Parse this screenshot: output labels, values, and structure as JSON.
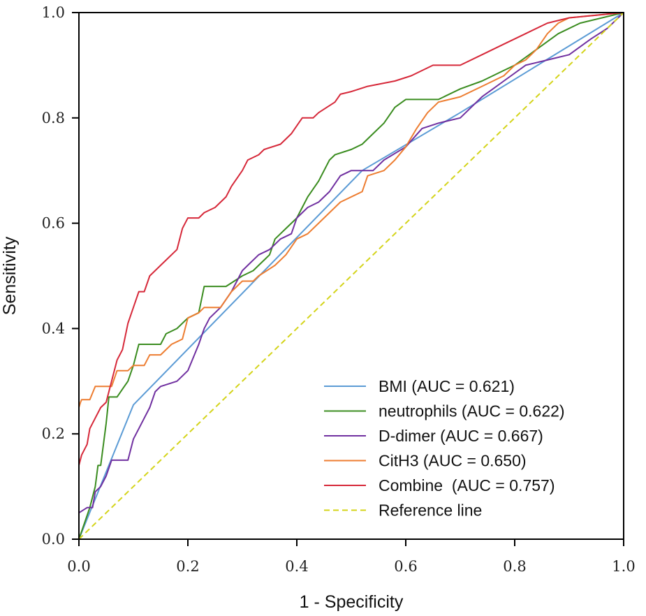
{
  "chart_data": {
    "type": "line",
    "title": "",
    "xlabel": "1 - Specificity",
    "ylabel": "Sensitivity",
    "xlim": [
      0,
      1
    ],
    "ylim": [
      0,
      1
    ],
    "xticks": [
      "0.0",
      "0.2",
      "0.4",
      "0.6",
      "0.8",
      "1.0"
    ],
    "yticks": [
      "0.0",
      "0.2",
      "0.4",
      "0.6",
      "0.8",
      "1.0"
    ],
    "legend_position": "bottom-right",
    "series": [
      {
        "name": "BMI (AUC = 0.621)",
        "color": "#5b9bd5",
        "dashed": false,
        "points": [
          [
            0,
            0
          ],
          [
            0.1,
            0.255
          ],
          [
            0.52,
            0.7
          ],
          [
            0.7,
            0.81
          ],
          [
            1,
            1
          ]
        ]
      },
      {
        "name": "neutrophils (AUC = 0.622)",
        "color": "#3a8c1f",
        "dashed": false,
        "points": [
          [
            0,
            0
          ],
          [
            0.01,
            0.03
          ],
          [
            0.02,
            0.06
          ],
          [
            0.03,
            0.1
          ],
          [
            0.035,
            0.14
          ],
          [
            0.04,
            0.14
          ],
          [
            0.045,
            0.18
          ],
          [
            0.05,
            0.22
          ],
          [
            0.055,
            0.27
          ],
          [
            0.07,
            0.27
          ],
          [
            0.08,
            0.285
          ],
          [
            0.09,
            0.3
          ],
          [
            0.1,
            0.33
          ],
          [
            0.11,
            0.37
          ],
          [
            0.15,
            0.37
          ],
          [
            0.16,
            0.39
          ],
          [
            0.18,
            0.4
          ],
          [
            0.2,
            0.42
          ],
          [
            0.22,
            0.43
          ],
          [
            0.23,
            0.48
          ],
          [
            0.27,
            0.48
          ],
          [
            0.3,
            0.5
          ],
          [
            0.32,
            0.51
          ],
          [
            0.33,
            0.52
          ],
          [
            0.35,
            0.54
          ],
          [
            0.36,
            0.57
          ],
          [
            0.37,
            0.58
          ],
          [
            0.38,
            0.59
          ],
          [
            0.4,
            0.61
          ],
          [
            0.41,
            0.63
          ],
          [
            0.42,
            0.65
          ],
          [
            0.44,
            0.68
          ],
          [
            0.46,
            0.72
          ],
          [
            0.47,
            0.73
          ],
          [
            0.5,
            0.74
          ],
          [
            0.52,
            0.75
          ],
          [
            0.54,
            0.77
          ],
          [
            0.56,
            0.79
          ],
          [
            0.58,
            0.82
          ],
          [
            0.6,
            0.835
          ],
          [
            0.66,
            0.835
          ],
          [
            0.7,
            0.855
          ],
          [
            0.74,
            0.87
          ],
          [
            0.78,
            0.89
          ],
          [
            0.8,
            0.9
          ],
          [
            0.84,
            0.93
          ],
          [
            0.88,
            0.96
          ],
          [
            0.92,
            0.98
          ],
          [
            1,
            1
          ]
        ]
      },
      {
        "name": "D-dimer (AUC = 0.667)",
        "color": "#7030a0",
        "dashed": false,
        "points": [
          [
            0,
            0.05
          ],
          [
            0.015,
            0.06
          ],
          [
            0.025,
            0.06
          ],
          [
            0.03,
            0.09
          ],
          [
            0.04,
            0.1
          ],
          [
            0.05,
            0.12
          ],
          [
            0.06,
            0.15
          ],
          [
            0.09,
            0.15
          ],
          [
            0.1,
            0.19
          ],
          [
            0.11,
            0.21
          ],
          [
            0.12,
            0.23
          ],
          [
            0.13,
            0.25
          ],
          [
            0.14,
            0.28
          ],
          [
            0.15,
            0.29
          ],
          [
            0.18,
            0.3
          ],
          [
            0.2,
            0.32
          ],
          [
            0.22,
            0.37
          ],
          [
            0.23,
            0.4
          ],
          [
            0.24,
            0.42
          ],
          [
            0.26,
            0.44
          ],
          [
            0.28,
            0.47
          ],
          [
            0.29,
            0.49
          ],
          [
            0.3,
            0.51
          ],
          [
            0.31,
            0.52
          ],
          [
            0.33,
            0.54
          ],
          [
            0.35,
            0.55
          ],
          [
            0.37,
            0.57
          ],
          [
            0.39,
            0.58
          ],
          [
            0.4,
            0.61
          ],
          [
            0.42,
            0.63
          ],
          [
            0.44,
            0.64
          ],
          [
            0.46,
            0.66
          ],
          [
            0.48,
            0.69
          ],
          [
            0.5,
            0.7
          ],
          [
            0.54,
            0.7
          ],
          [
            0.56,
            0.72
          ],
          [
            0.6,
            0.745
          ],
          [
            0.63,
            0.78
          ],
          [
            0.66,
            0.79
          ],
          [
            0.7,
            0.8
          ],
          [
            0.74,
            0.84
          ],
          [
            0.78,
            0.87
          ],
          [
            0.82,
            0.9
          ],
          [
            0.86,
            0.91
          ],
          [
            0.9,
            0.92
          ],
          [
            0.94,
            0.95
          ],
          [
            0.97,
            0.97
          ],
          [
            1,
            1
          ]
        ]
      },
      {
        "name": "CitH3 (AUC = 0.650)",
        "color": "#ed7d31",
        "dashed": false,
        "points": [
          [
            0,
            0.25
          ],
          [
            0.003,
            0.26
          ],
          [
            0.005,
            0.265
          ],
          [
            0.02,
            0.265
          ],
          [
            0.03,
            0.29
          ],
          [
            0.06,
            0.29
          ],
          [
            0.07,
            0.32
          ],
          [
            0.09,
            0.32
          ],
          [
            0.1,
            0.33
          ],
          [
            0.12,
            0.33
          ],
          [
            0.13,
            0.35
          ],
          [
            0.15,
            0.35
          ],
          [
            0.17,
            0.37
          ],
          [
            0.19,
            0.38
          ],
          [
            0.2,
            0.42
          ],
          [
            0.22,
            0.43
          ],
          [
            0.23,
            0.44
          ],
          [
            0.26,
            0.44
          ],
          [
            0.28,
            0.47
          ],
          [
            0.3,
            0.49
          ],
          [
            0.32,
            0.49
          ],
          [
            0.33,
            0.5
          ],
          [
            0.36,
            0.52
          ],
          [
            0.38,
            0.54
          ],
          [
            0.4,
            0.57
          ],
          [
            0.42,
            0.58
          ],
          [
            0.44,
            0.6
          ],
          [
            0.46,
            0.62
          ],
          [
            0.48,
            0.64
          ],
          [
            0.52,
            0.66
          ],
          [
            0.53,
            0.69
          ],
          [
            0.56,
            0.7
          ],
          [
            0.58,
            0.72
          ],
          [
            0.6,
            0.745
          ],
          [
            0.62,
            0.78
          ],
          [
            0.64,
            0.81
          ],
          [
            0.66,
            0.83
          ],
          [
            0.7,
            0.84
          ],
          [
            0.74,
            0.86
          ],
          [
            0.78,
            0.88
          ],
          [
            0.8,
            0.9
          ],
          [
            0.82,
            0.91
          ],
          [
            0.84,
            0.93
          ],
          [
            0.86,
            0.96
          ],
          [
            0.88,
            0.98
          ],
          [
            0.9,
            0.99
          ],
          [
            1,
            1
          ]
        ]
      },
      {
        "name": "Combine  (AUC = 0.757)",
        "color": "#d62839",
        "dashed": false,
        "points": [
          [
            0,
            0.14
          ],
          [
            0.005,
            0.16
          ],
          [
            0.01,
            0.17
          ],
          [
            0.015,
            0.18
          ],
          [
            0.02,
            0.21
          ],
          [
            0.03,
            0.23
          ],
          [
            0.04,
            0.25
          ],
          [
            0.05,
            0.26
          ],
          [
            0.06,
            0.3
          ],
          [
            0.07,
            0.34
          ],
          [
            0.08,
            0.36
          ],
          [
            0.09,
            0.41
          ],
          [
            0.1,
            0.44
          ],
          [
            0.11,
            0.47
          ],
          [
            0.12,
            0.47
          ],
          [
            0.13,
            0.5
          ],
          [
            0.15,
            0.52
          ],
          [
            0.16,
            0.53
          ],
          [
            0.18,
            0.55
          ],
          [
            0.19,
            0.59
          ],
          [
            0.2,
            0.61
          ],
          [
            0.22,
            0.61
          ],
          [
            0.23,
            0.62
          ],
          [
            0.25,
            0.63
          ],
          [
            0.27,
            0.65
          ],
          [
            0.28,
            0.67
          ],
          [
            0.3,
            0.7
          ],
          [
            0.31,
            0.72
          ],
          [
            0.33,
            0.73
          ],
          [
            0.34,
            0.74
          ],
          [
            0.37,
            0.75
          ],
          [
            0.38,
            0.76
          ],
          [
            0.39,
            0.77
          ],
          [
            0.4,
            0.785
          ],
          [
            0.41,
            0.8
          ],
          [
            0.43,
            0.8
          ],
          [
            0.44,
            0.81
          ],
          [
            0.47,
            0.83
          ],
          [
            0.48,
            0.845
          ],
          [
            0.5,
            0.85
          ],
          [
            0.53,
            0.86
          ],
          [
            0.58,
            0.87
          ],
          [
            0.61,
            0.88
          ],
          [
            0.65,
            0.9
          ],
          [
            0.7,
            0.9
          ],
          [
            0.74,
            0.92
          ],
          [
            0.78,
            0.94
          ],
          [
            0.82,
            0.96
          ],
          [
            0.86,
            0.98
          ],
          [
            0.9,
            0.99
          ],
          [
            1,
            1
          ]
        ]
      },
      {
        "name": "Reference line",
        "color": "#d4d41a",
        "dashed": true,
        "points": [
          [
            0,
            0
          ],
          [
            1,
            1
          ]
        ]
      }
    ]
  }
}
